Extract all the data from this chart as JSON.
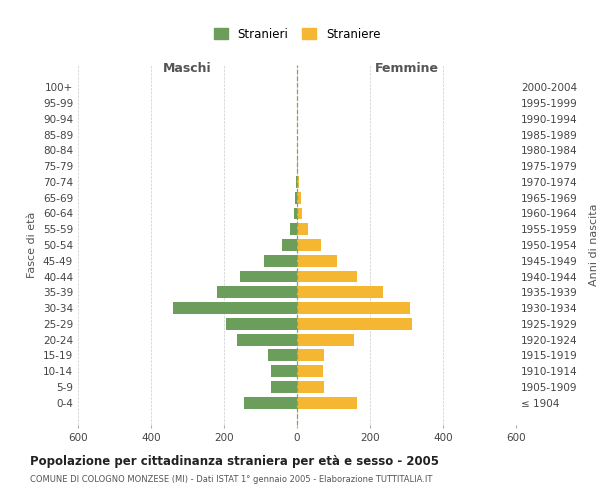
{
  "age_groups": [
    "100+",
    "95-99",
    "90-94",
    "85-89",
    "80-84",
    "75-79",
    "70-74",
    "65-69",
    "60-64",
    "55-59",
    "50-54",
    "45-49",
    "40-44",
    "35-39",
    "30-34",
    "25-29",
    "20-24",
    "15-19",
    "10-14",
    "5-9",
    "0-4"
  ],
  "birth_years": [
    "≤ 1904",
    "1905-1909",
    "1910-1914",
    "1915-1919",
    "1920-1924",
    "1925-1929",
    "1930-1934",
    "1935-1939",
    "1940-1944",
    "1945-1949",
    "1950-1954",
    "1955-1959",
    "1960-1964",
    "1965-1969",
    "1970-1974",
    "1975-1979",
    "1980-1984",
    "1985-1989",
    "1990-1994",
    "1995-1999",
    "2000-2004"
  ],
  "maschi": [
    0,
    0,
    0,
    0,
    0,
    0,
    2,
    5,
    8,
    18,
    40,
    90,
    155,
    220,
    340,
    195,
    165,
    80,
    70,
    72,
    145
  ],
  "femmine": [
    0,
    0,
    0,
    0,
    0,
    2,
    5,
    10,
    15,
    30,
    65,
    110,
    165,
    235,
    310,
    315,
    155,
    75,
    70,
    75,
    165
  ],
  "color_maschi": "#6a9e5a",
  "color_femmine": "#f5b731",
  "title": "Popolazione per cittadinanza straniera per età e sesso - 2005",
  "subtitle": "COMUNE DI COLOGNO MONZESE (MI) - Dati ISTAT 1° gennaio 2005 - Elaborazione TUTTITALIA.IT",
  "ylabel_left": "Fasce di età",
  "ylabel_right": "Anni di nascita",
  "xlabel_left": "Maschi",
  "xlabel_right": "Femmine",
  "legend_maschi": "Stranieri",
  "legend_femmine": "Straniere",
  "xlim": 600,
  "background_color": "#ffffff",
  "grid_color": "#cccccc"
}
